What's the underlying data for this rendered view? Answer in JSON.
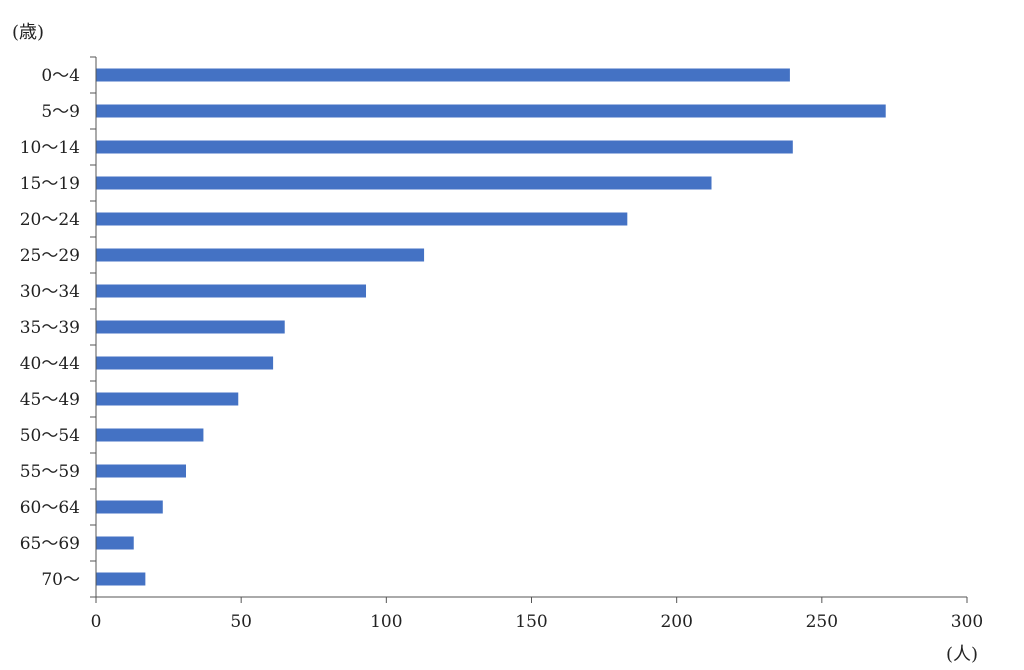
{
  "chart_data": {
    "type": "bar",
    "orientation": "horizontal",
    "ylabel": "(歳)",
    "xlabel": "(人)",
    "categories": [
      "0～4",
      "5～9",
      "10～14",
      "15～19",
      "20～24",
      "25～29",
      "30～34",
      "35～39",
      "40～44",
      "45～49",
      "50～54",
      "55～59",
      "60～64",
      "65～69",
      "70～"
    ],
    "values": [
      239,
      272,
      240,
      212,
      183,
      113,
      93,
      65,
      61,
      49,
      37,
      31,
      23,
      13,
      17
    ],
    "xlim": [
      0,
      300
    ],
    "xticks": [
      "0",
      "50",
      "100",
      "150",
      "200",
      "250",
      "300"
    ],
    "grid": false,
    "legend": "none",
    "bar_color": "#4472C4",
    "axis_color": "#555555"
  }
}
